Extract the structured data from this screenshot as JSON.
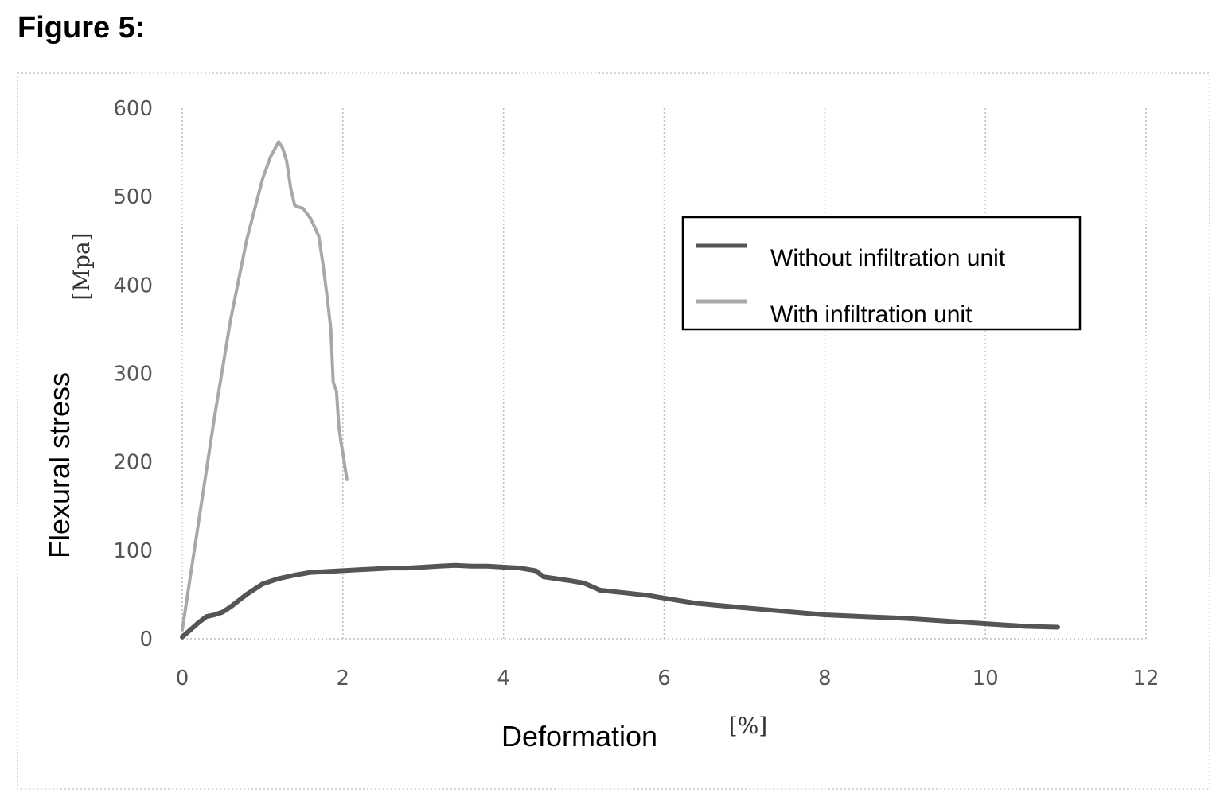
{
  "figure_title": "Figure 5:",
  "chart_data": {
    "type": "line",
    "xlabel": "Deformation",
    "xunit": "[%]",
    "ylabel": "Flexural stress",
    "yunit": "[Mpa]",
    "xlim": [
      0,
      12
    ],
    "ylim": [
      0,
      600
    ],
    "xticks": [
      0,
      2,
      4,
      6,
      8,
      10,
      12
    ],
    "yticks": [
      0,
      100,
      200,
      300,
      400,
      500,
      600
    ],
    "grid": "vertical",
    "legend_position": "top-right",
    "series": [
      {
        "name": "Without infiltration unit",
        "color": "#555555",
        "x": [
          0,
          0.1,
          0.2,
          0.3,
          0.4,
          0.5,
          0.6,
          0.8,
          1.0,
          1.2,
          1.4,
          1.6,
          1.8,
          2.0,
          2.2,
          2.4,
          2.6,
          2.8,
          3.0,
          3.2,
          3.4,
          3.6,
          3.8,
          4.0,
          4.2,
          4.4,
          4.5,
          4.8,
          5.0,
          5.2,
          5.5,
          5.8,
          6.0,
          6.4,
          7.0,
          7.5,
          8.0,
          8.5,
          9.0,
          9.5,
          10.0,
          10.5,
          10.9
        ],
        "y": [
          2,
          10,
          18,
          25,
          27,
          30,
          36,
          50,
          62,
          68,
          72,
          75,
          76,
          77,
          78,
          79,
          80,
          80,
          81,
          82,
          83,
          82,
          82,
          81,
          80,
          77,
          70,
          66,
          63,
          55,
          52,
          49,
          46,
          40,
          35,
          31,
          27,
          25,
          23,
          20,
          17,
          14,
          13
        ]
      },
      {
        "name": "With infiltration unit",
        "color": "#a8a8a8",
        "x": [
          0,
          0.2,
          0.4,
          0.6,
          0.8,
          1.0,
          1.1,
          1.2,
          1.25,
          1.3,
          1.35,
          1.4,
          1.45,
          1.5,
          1.6,
          1.7,
          1.75,
          1.8,
          1.85,
          1.88,
          1.92,
          1.95,
          1.98,
          2.0,
          2.05
        ],
        "y": [
          10,
          130,
          250,
          360,
          450,
          520,
          545,
          562,
          555,
          540,
          510,
          490,
          488,
          487,
          475,
          455,
          425,
          390,
          350,
          290,
          280,
          240,
          220,
          210,
          180
        ]
      }
    ]
  }
}
